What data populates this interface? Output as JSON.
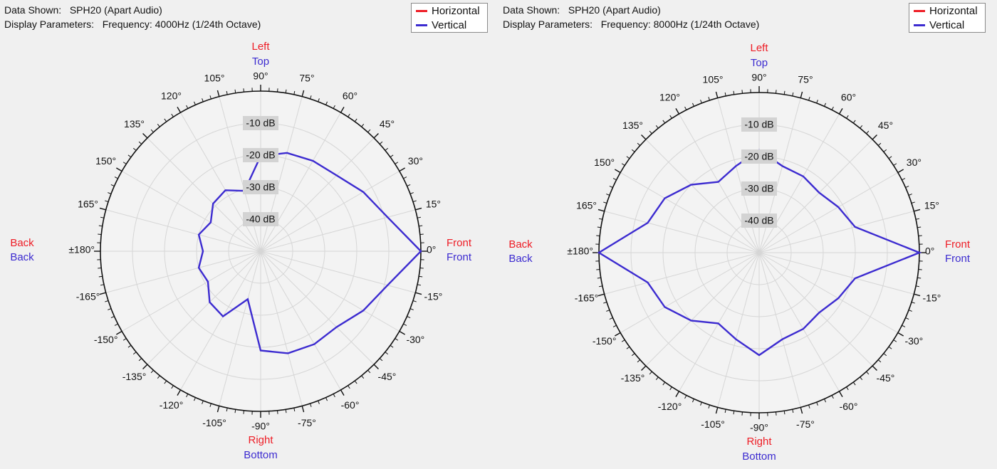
{
  "colors": {
    "horizontal": "#ee1c25",
    "vertical": "#3c2bd0",
    "grid": "#d6d6d6",
    "axis": "#111111",
    "db_label_bg": "#d3d3d3",
    "plot_bg": "#f3f3f3"
  },
  "legend": {
    "horizontal": "Horizontal",
    "vertical": "Vertical"
  },
  "position_labels": {
    "front": "Front",
    "back": "Back",
    "left": "Left",
    "right": "Right",
    "top": "Top",
    "bottom": "Bottom"
  },
  "chart_data": [
    {
      "type": "polar-line",
      "data_shown_label": "Data Shown:",
      "data_shown": "SPH20 (Apart Audio)",
      "display_params_label": "Display Parameters:",
      "display_params": "Frequency: 4000Hz (1/24th Octave)",
      "radial_axis": {
        "unit": "dB",
        "range": [
          -50,
          0
        ],
        "rings": [
          -10,
          -20,
          -30,
          -40
        ],
        "ring_labels": [
          "-10 dB",
          "-20 dB",
          "-30 dB",
          "-40 dB"
        ]
      },
      "angle_axis": {
        "ticks_deg": [
          0,
          15,
          30,
          45,
          60,
          75,
          90,
          105,
          120,
          135,
          150,
          165,
          180,
          -165,
          -150,
          -135,
          -120,
          -105,
          -90,
          -75,
          -60,
          -45,
          -30,
          -15
        ],
        "tick_labels": [
          "0°",
          "15°",
          "30°",
          "45°",
          "60°",
          "75°",
          "90°",
          "105°",
          "120°",
          "135°",
          "150°",
          "165°",
          "±180°",
          "-165°",
          "-150°",
          "-135°",
          "-120°",
          "-105°",
          "-90°",
          "-75°",
          "-60°",
          "-45°",
          "-30°",
          "-15°"
        ]
      },
      "series": [
        {
          "name": "Vertical",
          "angles_deg": [
            0,
            15,
            30,
            45,
            60,
            75,
            90,
            105,
            120,
            135,
            150,
            165,
            180,
            -165,
            -150,
            -135,
            -120,
            -105,
            -90,
            -75,
            -60,
            -45,
            -30,
            -15
          ],
          "values_db": [
            0,
            -9,
            -13,
            -16.5,
            -17.4,
            -18.2,
            -20.3,
            -30.5,
            -28,
            -29,
            -32,
            -30,
            -32,
            -30,
            -31,
            -27.5,
            -26.5,
            -34.5,
            -19,
            -17,
            -16.5,
            -16.5,
            -13,
            -9
          ]
        }
      ]
    },
    {
      "type": "polar-line",
      "data_shown_label": "Data Shown:",
      "data_shown": "SPH20 (Apart Audio)",
      "display_params_label": "Display Parameters:",
      "display_params": "Frequency: 8000Hz (1/24th Octave)",
      "radial_axis": {
        "unit": "dB",
        "range": [
          -50,
          0
        ],
        "rings": [
          -10,
          -20,
          -30,
          -40
        ],
        "ring_labels": [
          "-10 dB",
          "-20 dB",
          "-30 dB",
          "-40 dB"
        ]
      },
      "angle_axis": {
        "ticks_deg": [
          0,
          15,
          30,
          45,
          60,
          75,
          90,
          105,
          120,
          135,
          150,
          165,
          180,
          -165,
          -150,
          -135,
          -120,
          -105,
          -90,
          -75,
          -60,
          -45,
          -30,
          -15
        ],
        "tick_labels": [
          "0°",
          "15°",
          "30°",
          "45°",
          "60°",
          "75°",
          "90°",
          "105°",
          "120°",
          "135°",
          "150°",
          "165°",
          "±180°",
          "-165°",
          "-150°",
          "-135°",
          "-120°",
          "-105°",
          "-90°",
          "-75°",
          "-60°",
          "-45°",
          "-30°",
          "-15°"
        ]
      },
      "series": [
        {
          "name": "Vertical",
          "angles_deg": [
            0,
            15,
            30,
            45,
            60,
            75,
            90,
            105,
            120,
            135,
            150,
            165,
            180,
            -165,
            -150,
            -135,
            -120,
            -105,
            -90,
            -75,
            -60,
            -45,
            -30,
            -15
          ],
          "values_db": [
            0,
            -19,
            -21.5,
            -23.5,
            -22.5,
            -22,
            -18,
            -22,
            -24.5,
            -20,
            -16,
            -14,
            0,
            -14,
            -16,
            -20,
            -24.5,
            -22,
            -18,
            -22,
            -22.5,
            -23.5,
            -21.5,
            -19
          ]
        }
      ]
    }
  ]
}
